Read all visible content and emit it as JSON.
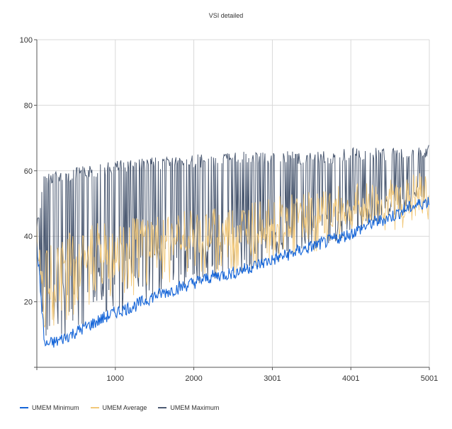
{
  "chart_data": {
    "type": "line",
    "title": "VSI detailed",
    "xlabel": "",
    "ylabel": "",
    "xlim": [
      0,
      5001
    ],
    "ylim": [
      0,
      100
    ],
    "x_ticks": [
      1000,
      2000,
      3001,
      4001,
      5001
    ],
    "y_ticks": [
      20,
      40,
      60,
      80,
      100
    ],
    "grid": true,
    "legend_position": "bottom-left",
    "series": [
      {
        "name": "UMEM Minimum",
        "color": "#1565d8",
        "x": [
          0,
          100,
          250,
          500,
          750,
          1000,
          1250,
          1500,
          1750,
          2000,
          2250,
          2500,
          2750,
          3001,
          3250,
          3500,
          3750,
          4001,
          4250,
          4500,
          4750,
          5001
        ],
        "values": [
          37,
          6,
          7,
          10,
          13,
          16,
          18,
          21,
          23,
          25,
          27,
          28,
          30,
          32,
          34,
          36,
          38,
          40,
          43,
          45,
          48,
          50
        ]
      },
      {
        "name": "UMEM Average",
        "color": "#f2c879",
        "x": [
          0,
          100,
          250,
          500,
          750,
          1000,
          1250,
          1500,
          1750,
          2000,
          2250,
          2500,
          2750,
          3001,
          3250,
          3500,
          3750,
          4001,
          4250,
          4500,
          4750,
          5001
        ],
        "values": [
          38,
          28,
          33,
          35,
          37,
          38,
          39,
          40,
          41,
          42,
          42,
          43,
          44,
          45,
          46,
          47,
          48,
          49,
          50,
          51,
          52,
          54
        ]
      },
      {
        "name": "UMEM Maximum",
        "color": "#4d5b73",
        "x": [
          0,
          100,
          250,
          500,
          750,
          1000,
          1250,
          1500,
          1750,
          2000,
          2250,
          2500,
          2750,
          3001,
          3250,
          3500,
          3750,
          4001,
          4250,
          4500,
          4750,
          5001
        ],
        "values": [
          45,
          60,
          60,
          61,
          62,
          63,
          64,
          64,
          65,
          65,
          65,
          66,
          66,
          66,
          66,
          66,
          66,
          67,
          67,
          67,
          67,
          68
        ]
      }
    ]
  }
}
